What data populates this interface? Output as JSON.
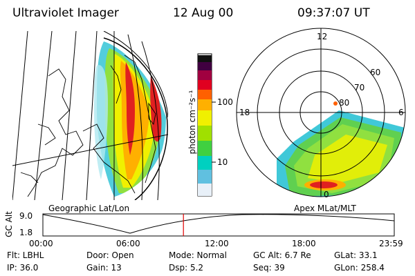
{
  "header": {
    "instrument": "Ultraviolet Imager",
    "date": "12 Aug 00",
    "time": "09:37:07 UT"
  },
  "colorbar": {
    "unit_label": "photon cm⁻²s⁻¹",
    "ticks": [
      "100",
      "10"
    ],
    "colors": [
      "#101010",
      "#400040",
      "#a00040",
      "#e00020",
      "#ff6000",
      "#ffb000",
      "#f0f000",
      "#a0e000",
      "#40d040",
      "#00d0c0",
      "#60c0e0",
      "#e8f0f8"
    ]
  },
  "polar": {
    "mlt_labels": [
      "12",
      "18",
      "6",
      "0"
    ],
    "lat_labels": [
      "60",
      "70",
      "80"
    ]
  },
  "panel_labels": {
    "left": "Geographic Lat/Lon",
    "right": "Apex MLat/MLT"
  },
  "altitude_plot": {
    "ylabel": "GC Alt",
    "yticks": [
      "9.0",
      "1.8"
    ],
    "xticks": [
      "00:00",
      "06:00",
      "12:00",
      "18:00",
      "23:59"
    ],
    "current_time_fraction": 0.4
  },
  "status": {
    "flt": "Flt: LBHL",
    "door": "Door: Open",
    "mode": "Mode: Normal",
    "gc_alt": "GC Alt: 6.7 Re",
    "glat": "GLat:  33.1",
    "ip": "IP: 36.0",
    "gain": "Gain: 13",
    "dsp": "Dsp:     5.2",
    "seq": "Seq: 39",
    "glon": "GLon: 258.4"
  }
}
